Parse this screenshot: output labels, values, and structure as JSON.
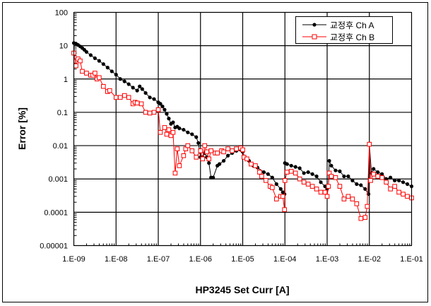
{
  "chart_data": {
    "type": "line",
    "title": "",
    "xlabel": "HP3245 Set Curr [A]",
    "ylabel": "Error [%]",
    "xscale": "log",
    "yscale": "log",
    "xlim": [
      1e-09,
      0.1
    ],
    "ylim": [
      1e-05,
      100
    ],
    "x_tick_labels": [
      "1.E-09",
      "1.E-08",
      "1.E-07",
      "1.E-06",
      "1.E-05",
      "1.E-04",
      "1.E-03",
      "1.E-02",
      "1.E-01"
    ],
    "y_tick_labels": [
      "100",
      "10",
      "1",
      "0.1",
      "0.01",
      "0.001",
      "0.0001",
      "0.00001"
    ],
    "grid": true,
    "legend_position": "top-right",
    "series": [
      {
        "name": "교정후 Ch A",
        "color": "#000000",
        "marker": "filled-circle",
        "x_log10": [
          -9.0,
          -8.95,
          -8.9,
          -8.85,
          -8.8,
          -8.75,
          -8.7,
          -8.6,
          -8.5,
          -8.4,
          -8.3,
          -8.2,
          -8.1,
          -8.0,
          -7.9,
          -7.8,
          -7.7,
          -7.6,
          -7.5,
          -7.44,
          -7.38,
          -7.3,
          -7.2,
          -7.1,
          -7.0,
          -6.95,
          -6.9,
          -6.85,
          -6.8,
          -6.75,
          -6.7,
          -6.65,
          -6.6,
          -6.55,
          -6.5,
          -6.4,
          -6.3,
          -6.2,
          -6.1,
          -6.05,
          -6.0,
          -5.95,
          -5.9,
          -5.85,
          -5.8,
          -5.75,
          -5.7,
          -5.6,
          -5.55,
          -5.45,
          -5.35,
          -5.25,
          -5.15,
          -5.05,
          -5.0,
          -4.95,
          -4.85,
          -4.75,
          -4.65,
          -4.5,
          -4.4,
          -4.3,
          -4.2,
          -4.1,
          -4.05,
          -4.01,
          -4.0,
          -3.95,
          -3.85,
          -3.75,
          -3.65,
          -3.55,
          -3.45,
          -3.35,
          -3.25,
          -3.15,
          -3.05,
          -3.0,
          -2.97,
          -2.95,
          -2.9,
          -2.8,
          -2.7,
          -2.6,
          -2.5,
          -2.4,
          -2.3,
          -2.2,
          -2.1,
          -2.02,
          -2.0,
          -1.95,
          -1.9,
          -1.8,
          -1.7,
          -1.6,
          -1.5,
          -1.4,
          -1.3,
          -1.2,
          -1.1,
          -1.0
        ],
        "y": [
          12,
          11.5,
          10.5,
          9.5,
          8.5,
          7.5,
          6.5,
          5.2,
          4.2,
          3.5,
          2.8,
          2.2,
          1.7,
          1.35,
          1.0,
          0.85,
          0.7,
          0.55,
          0.45,
          0.6,
          0.5,
          0.38,
          0.28,
          0.25,
          0.2,
          0.18,
          0.15,
          0.12,
          0.09,
          0.065,
          0.045,
          0.05,
          0.035,
          0.037,
          0.033,
          0.03,
          0.025,
          0.022,
          0.018,
          0.012,
          0.0045,
          0.0045,
          0.006,
          0.0045,
          0.003,
          0.0011,
          0.0011,
          0.0025,
          0.0028,
          0.0035,
          0.005,
          0.006,
          0.007,
          0.0075,
          0.0065,
          0.0045,
          0.0035,
          0.0025,
          0.0022,
          0.0016,
          0.0014,
          0.0011,
          0.0007,
          0.0005,
          0.0004,
          0.00035,
          0.003,
          0.0028,
          0.0025,
          0.0023,
          0.0021,
          0.0015,
          0.0016,
          0.0014,
          0.0012,
          0.0008,
          0.0006,
          0.0005,
          0.0006,
          0.0035,
          0.0025,
          0.0018,
          0.0017,
          0.0012,
          0.0012,
          0.0009,
          0.0007,
          0.00065,
          0.0005,
          0.00035,
          0.011,
          0.0015,
          0.002,
          0.0016,
          0.0014,
          0.001,
          0.0011,
          0.0009,
          0.0009,
          0.0008,
          0.0007,
          0.0006
        ]
      },
      {
        "name": "교정후 Ch B",
        "color": "#ff0000",
        "marker": "open-square",
        "x_log10": [
          -9.0,
          -8.95,
          -8.9,
          -8.85,
          -8.8,
          -8.7,
          -8.6,
          -8.55,
          -8.5,
          -8.45,
          -8.4,
          -8.3,
          -8.2,
          -8.15,
          -8.0,
          -7.9,
          -7.8,
          -7.7,
          -7.6,
          -7.55,
          -7.5,
          -7.4,
          -7.3,
          -7.2,
          -7.1,
          -7.0,
          -6.95,
          -6.85,
          -6.8,
          -6.75,
          -6.7,
          -6.65,
          -6.6,
          -6.55,
          -6.5,
          -6.4,
          -6.35,
          -6.3,
          -6.2,
          -6.1,
          -6.0,
          -5.95,
          -5.9,
          -5.85,
          -5.8,
          -5.75,
          -5.65,
          -5.6,
          -5.5,
          -5.45,
          -5.35,
          -5.25,
          -5.15,
          -5.05,
          -5.0,
          -4.97,
          -4.9,
          -4.8,
          -4.7,
          -4.6,
          -4.55,
          -4.45,
          -4.35,
          -4.3,
          -4.2,
          -4.1,
          -4.05,
          -4.01,
          -4.0,
          -3.95,
          -3.85,
          -3.75,
          -3.65,
          -3.55,
          -3.45,
          -3.35,
          -3.25,
          -3.15,
          -3.05,
          -3.0,
          -2.97,
          -2.95,
          -2.9,
          -2.8,
          -2.7,
          -2.6,
          -2.5,
          -2.4,
          -2.3,
          -2.2,
          -2.1,
          -2.05,
          -2.0,
          -1.97,
          -1.9,
          -1.8,
          -1.7,
          -1.6,
          -1.5,
          -1.4,
          -1.3,
          -1.2,
          -1.1,
          -1.0
        ],
        "y": [
          6,
          2.5,
          4,
          3.5,
          1.7,
          1.5,
          1.3,
          1.3,
          1.5,
          1.0,
          1.1,
          0.6,
          0.42,
          0.45,
          0.28,
          0.28,
          0.32,
          0.28,
          0.18,
          0.2,
          0.19,
          0.18,
          0.1,
          0.095,
          0.1,
          0.12,
          0.025,
          0.035,
          0.022,
          0.03,
          0.02,
          0.025,
          0.0015,
          0.008,
          0.0025,
          0.005,
          0.008,
          0.01,
          0.007,
          0.0045,
          0.007,
          0.004,
          0.01,
          0.0065,
          0.004,
          0.007,
          0.006,
          0.006,
          0.007,
          0.0065,
          0.008,
          0.007,
          0.008,
          0.0085,
          0.0075,
          0.0045,
          0.004,
          0.0028,
          0.0025,
          0.0016,
          0.0012,
          0.0009,
          0.0006,
          0.00055,
          0.00025,
          0.0003,
          0.0003,
          0.00012,
          0.0009,
          0.0016,
          0.0017,
          0.0015,
          0.001,
          0.0008,
          0.0007,
          0.0006,
          0.0005,
          0.0004,
          0.0004,
          0.0003,
          0.0006,
          0.0015,
          0.0012,
          0.0011,
          0.0006,
          0.00025,
          0.0003,
          0.00025,
          0.00018,
          6.5e-05,
          7e-05,
          0.00015,
          0.011,
          0.0009,
          0.0014,
          0.0012,
          0.0011,
          0.0008,
          0.0005,
          0.0006,
          0.0004,
          0.00035,
          0.0003,
          0.00027
        ]
      }
    ]
  }
}
